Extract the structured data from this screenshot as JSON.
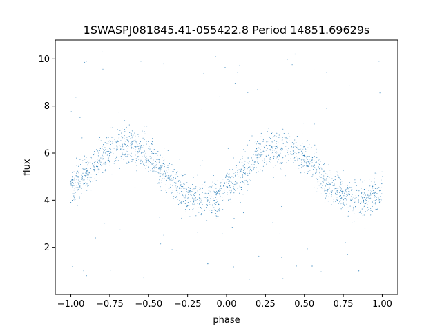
{
  "chart_data": {
    "type": "scatter",
    "title": "1SWASPJ081845.41-055422.8 Period 14851.69629s",
    "xlabel": "phase",
    "ylabel": "flux",
    "xlim": [
      -1.1,
      1.1
    ],
    "ylim": [
      0.0,
      10.8
    ],
    "x_ticks": [
      -1.0,
      -0.75,
      -0.5,
      -0.25,
      0.0,
      0.25,
      0.5,
      0.75,
      1.0
    ],
    "x_tick_labels": [
      "−1.00",
      "−0.75",
      "−0.50",
      "−0.25",
      "0.00",
      "0.25",
      "0.50",
      "0.75",
      "1.00"
    ],
    "y_ticks": [
      2,
      4,
      6,
      8,
      10
    ],
    "y_tick_labels": [
      "2",
      "4",
      "6",
      "8",
      "10"
    ],
    "grid": false,
    "marker_color": "#1f77b4",
    "series": [
      {
        "model": {
          "phase_range": [
            -1.0,
            1.0
          ],
          "mean_flux": 5.15,
          "amplitude": 1.15,
          "peak_phase": 0.35,
          "period_in_phase": 1.0,
          "scatter_sigma": 0.38,
          "outlier_fraction": 0.03,
          "outlier_flux_range": [
            0.5,
            10.4
          ]
        },
        "points": [
          [
            -0.98,
            5.2
          ],
          [
            -0.9,
            5.6
          ],
          [
            -0.82,
            6.0
          ],
          [
            -0.75,
            6.2
          ],
          [
            -0.68,
            6.3
          ],
          [
            -0.6,
            6.2
          ],
          [
            -0.5,
            5.7
          ],
          [
            -0.4,
            5.0
          ],
          [
            -0.3,
            4.3
          ],
          [
            -0.2,
            4.0
          ],
          [
            -0.12,
            4.0
          ],
          [
            -0.05,
            4.4
          ],
          [
            0.02,
            5.0
          ],
          [
            0.1,
            5.6
          ],
          [
            0.2,
            6.1
          ],
          [
            0.3,
            6.3
          ],
          [
            0.38,
            6.3
          ],
          [
            0.5,
            5.9
          ],
          [
            0.6,
            5.2
          ],
          [
            0.7,
            4.5
          ],
          [
            0.8,
            4.0
          ],
          [
            0.88,
            4.0
          ],
          [
            0.95,
            4.3
          ],
          [
            1.0,
            5.0
          ],
          [
            -0.8,
            10.3
          ],
          [
            0.44,
            10.2
          ],
          [
            -0.55,
            9.9
          ],
          [
            0.98,
            9.9
          ],
          [
            -0.9,
            0.8
          ],
          [
            0.85,
            1.0
          ],
          [
            -0.12,
            1.3
          ],
          [
            0.55,
            1.2
          ],
          [
            -0.35,
            1.9
          ],
          [
            0.2,
            8.7
          ]
        ]
      }
    ]
  }
}
